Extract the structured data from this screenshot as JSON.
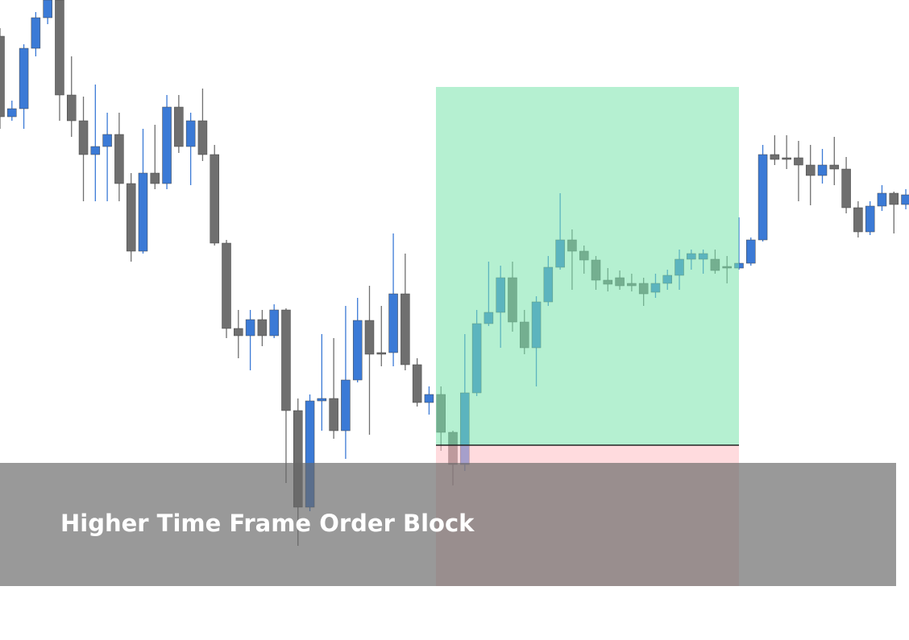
{
  "chart_data": {
    "type": "candlestick",
    "annotation": "Higher Time Frame Order Block",
    "up_color": "#3b7ad6",
    "down_color": "#6f6f6f",
    "ylim": [
      0,
      800
    ],
    "open": [
      755,
      655,
      665,
      740,
      778,
      800,
      682,
      650,
      608,
      618,
      633,
      572,
      488,
      585,
      572,
      667,
      618,
      650,
      608,
      498,
      392,
      383,
      403,
      383,
      415,
      290,
      170,
      302,
      305,
      265,
      328,
      402,
      362,
      362,
      435,
      347,
      300,
      310,
      263,
      223,
      312,
      398,
      412,
      455,
      400,
      368,
      425,
      468,
      502,
      488,
      477,
      452,
      455,
      448,
      448,
      437,
      448,
      458,
      478,
      478,
      478,
      469,
      467,
      473,
      502,
      608,
      604,
      604,
      595,
      582,
      595,
      590,
      542,
      512,
      544,
      560,
      546
    ],
    "high": [
      765,
      675,
      745,
      785,
      800,
      800,
      730,
      680,
      695,
      660,
      660,
      585,
      640,
      645,
      682,
      682,
      660,
      690,
      620,
      502,
      415,
      415,
      415,
      422,
      417,
      305,
      310,
      385,
      380,
      420,
      430,
      445,
      420,
      510,
      485,
      355,
      320,
      320,
      265,
      385,
      415,
      475,
      470,
      475,
      415,
      432,
      482,
      560,
      515,
      495,
      482,
      467,
      464,
      460,
      455,
      460,
      465,
      490,
      490,
      490,
      490,
      482,
      530,
      505,
      620,
      632,
      632,
      625,
      620,
      615,
      630,
      605,
      550,
      550,
      570,
      562,
      565
    ],
    "low": [
      640,
      650,
      640,
      730,
      770,
      650,
      630,
      550,
      550,
      550,
      550,
      475,
      485,
      565,
      565,
      610,
      570,
      600,
      495,
      380,
      355,
      340,
      370,
      380,
      200,
      122,
      165,
      265,
      255,
      230,
      325,
      260,
      345,
      345,
      340,
      295,
      285,
      240,
      197,
      215,
      308,
      395,
      368,
      388,
      360,
      320,
      420,
      465,
      440,
      460,
      440,
      438,
      440,
      438,
      420,
      430,
      440,
      440,
      465,
      460,
      460,
      448,
      465,
      470,
      500,
      595,
      590,
      550,
      545,
      572,
      570,
      535,
      505,
      508,
      538,
      510,
      540
    ],
    "close": [
      655,
      665,
      740,
      778,
      800,
      682,
      650,
      608,
      618,
      633,
      572,
      488,
      585,
      572,
      667,
      618,
      650,
      608,
      498,
      392,
      383,
      403,
      383,
      415,
      290,
      170,
      302,
      305,
      265,
      328,
      402,
      360,
      360,
      435,
      347,
      300,
      310,
      263,
      223,
      312,
      398,
      412,
      455,
      400,
      368,
      425,
      468,
      502,
      488,
      477,
      452,
      447,
      445,
      445,
      435,
      448,
      458,
      478,
      485,
      485,
      464,
      467,
      473,
      502,
      608,
      602,
      602,
      595,
      582,
      595,
      590,
      542,
      512,
      544,
      560,
      546,
      558
    ]
  }
}
